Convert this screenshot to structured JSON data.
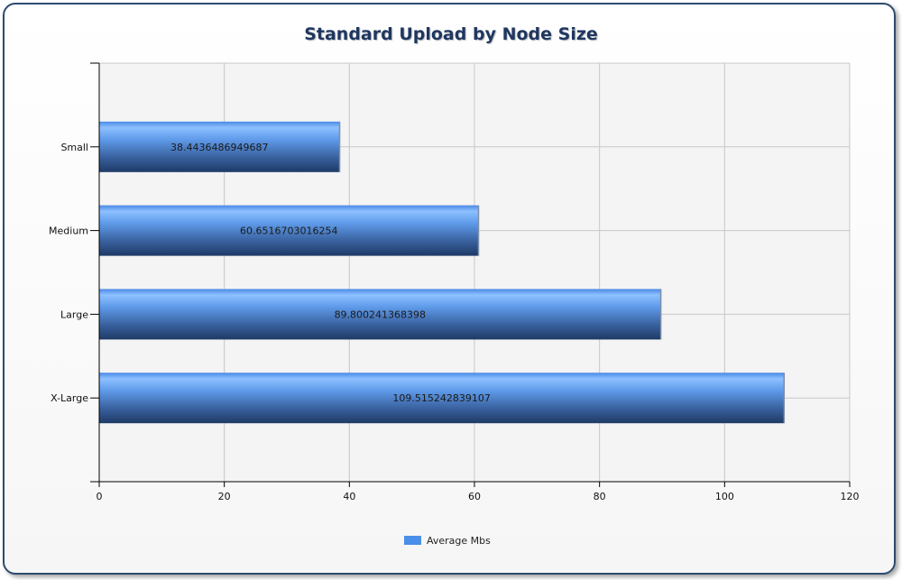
{
  "chart_data": {
    "type": "bar",
    "orientation": "horizontal",
    "title": "Standard Upload by Node Size",
    "categories": [
      "Small",
      "Medium",
      "Large",
      "X-Large"
    ],
    "series": [
      {
        "name": "Average Mbs",
        "values": [
          38.4436486949687,
          60.6516703016254,
          89.800241368398,
          109.515242839107
        ],
        "labels": [
          "38.4436486949687",
          "60.6516703016254",
          "89.800241368398",
          "109.515242839107"
        ]
      }
    ],
    "xlim": [
      0,
      120
    ],
    "x_ticks": [
      "0",
      "20",
      "40",
      "60",
      "80",
      "100",
      "120"
    ],
    "grid": true,
    "legend_position": "bottom"
  },
  "colors": {
    "bar_top": "#7fb6ff",
    "bar_mid": "#5fa0f2",
    "bar_bottom": "#1e3a66",
    "legend_swatch": "#4a8fe8",
    "title": "#1f3760"
  }
}
